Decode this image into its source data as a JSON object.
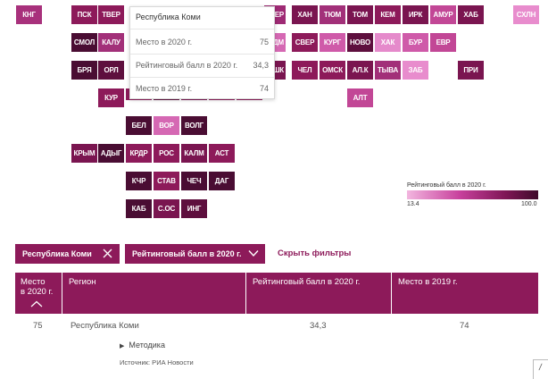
{
  "tiles": [
    {
      "label": "КНГ",
      "color": "#a8317c"
    },
    {
      "label": "ПСК",
      "color": "#8d1a5a"
    },
    {
      "label": "ТВЕР",
      "color": "#8d1a5a"
    },
    {
      "label": "ЕР",
      "color": "#9e2a74"
    },
    {
      "label": "ХАН",
      "color": "#7a1550"
    },
    {
      "label": "ТЮМ",
      "color": "#a23079"
    },
    {
      "label": "ТОМ",
      "color": "#7a1550"
    },
    {
      "label": "КЕМ",
      "color": "#8d1a5a"
    },
    {
      "label": "ИРК",
      "color": "#7a1550"
    },
    {
      "label": "АМУР",
      "color": "#c24796"
    },
    {
      "label": "ХАБ",
      "color": "#7a1550"
    },
    {
      "label": "СХЛН",
      "color": "#e88ccd"
    },
    {
      "label": "СМОЛ",
      "color": "#4a0d33"
    },
    {
      "label": "КАЛУ",
      "color": "#a23079"
    },
    {
      "label": "ДМ",
      "color": "#d568b3"
    },
    {
      "label": "СВЕР",
      "color": "#8d1a5a"
    },
    {
      "label": "КУРГ",
      "color": "#cf5aa9"
    },
    {
      "label": "НОВО",
      "color": "#5e0f3e"
    },
    {
      "label": "ХАК",
      "color": "#e58acb"
    },
    {
      "label": "БУР",
      "color": "#cf5aa9"
    },
    {
      "label": "ЕВР",
      "color": "#c24796"
    },
    {
      "label": "БРЯ",
      "color": "#4a0d33"
    },
    {
      "label": "ОРЛ",
      "color": "#5e0f3e"
    },
    {
      "label": "ШК",
      "color": "#7a1550"
    },
    {
      "label": "ЧЕЛ",
      "color": "#8d1a5a"
    },
    {
      "label": "ОМСК",
      "color": "#8d1a5a"
    },
    {
      "label": "АЛ.К",
      "color": "#7a1550"
    },
    {
      "label": "ТЫВА",
      "color": "#a23079"
    },
    {
      "label": "ЗАБ",
      "color": "#e88ccd"
    },
    {
      "label": "ПРИ",
      "color": "#7a1550"
    },
    {
      "label": "КУР",
      "color": "#8d1a5a"
    },
    {
      "label": "АЛТ",
      "color": "#c24796"
    },
    {
      "label": "БЕЛ",
      "color": "#4a0d33"
    },
    {
      "label": "ВОР",
      "color": "#d568b3"
    },
    {
      "label": "ВОЛГ",
      "color": "#4a0d33"
    },
    {
      "label": "КРЫМ",
      "color": "#7a1550"
    },
    {
      "label": "АДЫГ",
      "color": "#4a0d33"
    },
    {
      "label": "КРДР",
      "color": "#8d1a5a"
    },
    {
      "label": "РОС",
      "color": "#8d1a5a"
    },
    {
      "label": "КАЛМ",
      "color": "#7a1550"
    },
    {
      "label": "АСТ",
      "color": "#8d1a5a"
    },
    {
      "label": "КЧР",
      "color": "#4a0d33"
    },
    {
      "label": "СТАВ",
      "color": "#8d1a5a"
    },
    {
      "label": "ЧЕЧ",
      "color": "#4a0d33"
    },
    {
      "label": "ДАГ",
      "color": "#4a0d33"
    },
    {
      "label": "КАБ",
      "color": "#4a0d33"
    },
    {
      "label": "С.ОС",
      "color": "#7a1550"
    },
    {
      "label": "ИНГ",
      "color": "#5e0f3e"
    }
  ],
  "partial_tiles": [
    {
      "color": "#8d1a5a"
    },
    {
      "color": "#5e0f3e"
    },
    {
      "color": "#7a1550"
    },
    {
      "color": "#8d1a5a"
    },
    {
      "color": "#8d1a5a"
    }
  ],
  "tooltip": {
    "title": "Республика Коми",
    "rows": [
      {
        "label": "Место в 2020 г.",
        "value": "75"
      },
      {
        "label": "Рейтинговый балл в 2020 г.",
        "value": "34,3"
      },
      {
        "label": "Место в 2019 г.",
        "value": "74"
      }
    ]
  },
  "legend": {
    "title": "Рейтинговый балл в 2020 г.",
    "min": "13.4",
    "max": "100.0",
    "colors": [
      "#f2b6df",
      "#c8419d",
      "#7f1656",
      "#3f0a2a"
    ]
  },
  "filters": {
    "region": {
      "label": "Республика Коми",
      "icon": "close-icon"
    },
    "metric": {
      "label": "Рейтинговый балл в 2020 г.",
      "icon": "chevron-down-icon"
    },
    "hide_label": "Скрыть фильтры"
  },
  "table": {
    "headers": {
      "rank2020_line1": "Место",
      "rank2020_line2": "в 2020 г.",
      "region": "Регион",
      "score2020": "Рейтинговый балл в 2020 г.",
      "rank2019": "Место в 2019 г."
    },
    "row": {
      "rank2020": "75",
      "region": "Республика Коми",
      "score2020": "34,3",
      "rank2019": "74"
    }
  },
  "methodology": {
    "label": "Методика",
    "icon": "triangle-right-icon"
  },
  "source": "Источник: РИА Новости",
  "accent": "#8d1a5a"
}
